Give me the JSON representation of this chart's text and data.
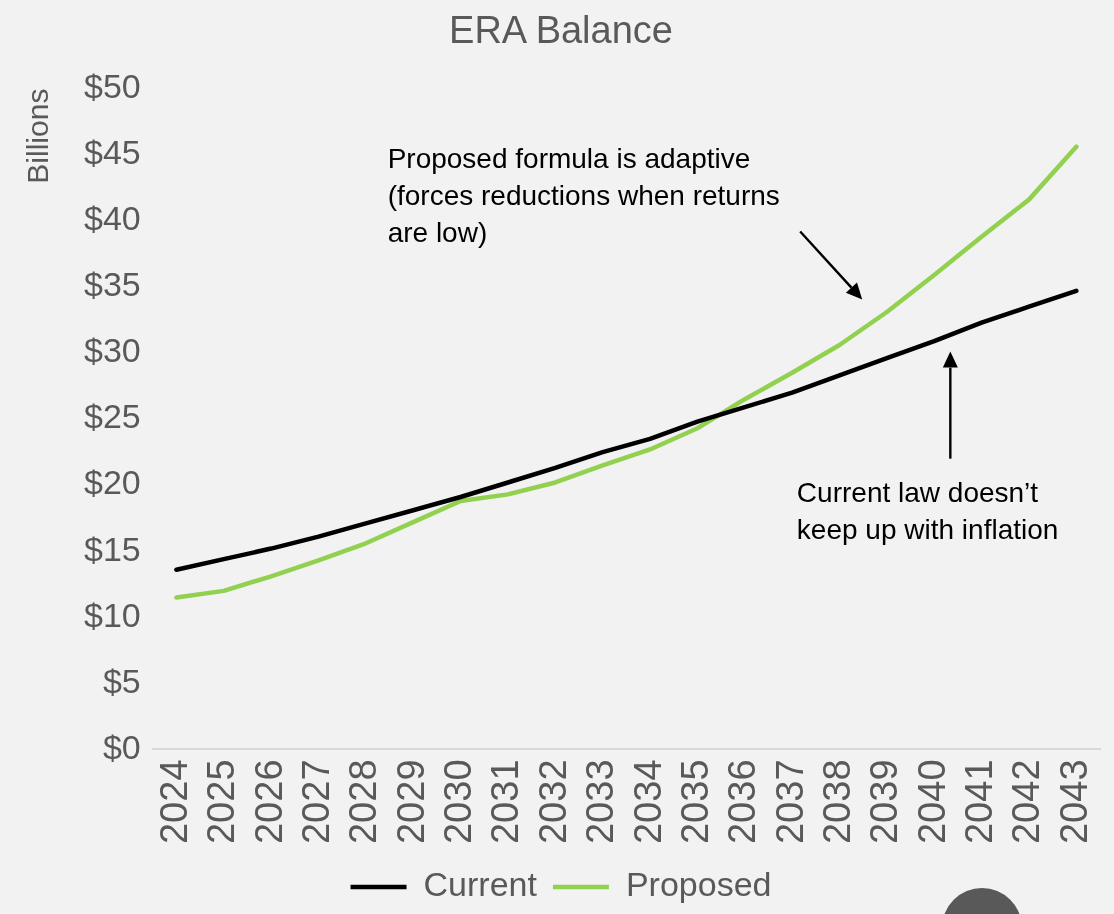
{
  "chart_data": {
    "type": "line",
    "title": "ERA Balance",
    "ylabel": "Billions",
    "categories": [
      "2024",
      "2025",
      "2026",
      "2027",
      "2028",
      "2029",
      "2030",
      "2031",
      "2032",
      "2033",
      "2034",
      "2035",
      "2036",
      "2037",
      "2038",
      "2039",
      "2040",
      "2041",
      "2042",
      "2043"
    ],
    "series": [
      {
        "name": "Current",
        "color": "#000000",
        "values": [
          13.6,
          14.4,
          15.2,
          16.1,
          17.1,
          18.1,
          19.1,
          20.2,
          21.3,
          22.5,
          23.5,
          24.8,
          25.9,
          27.0,
          28.3,
          29.6,
          30.9,
          32.3,
          33.5,
          34.7
        ]
      },
      {
        "name": "Proposed",
        "color": "#92d050",
        "values": [
          11.5,
          12.0,
          13.1,
          14.3,
          15.6,
          17.2,
          18.8,
          19.3,
          20.2,
          21.5,
          22.7,
          24.3,
          26.5,
          28.5,
          30.6,
          33.1,
          35.9,
          38.8,
          41.6,
          45.6
        ]
      }
    ],
    "ylim": [
      0,
      50
    ],
    "yticks": [
      {
        "value": 0,
        "label": "$0"
      },
      {
        "value": 5,
        "label": "$5"
      },
      {
        "value": 10,
        "label": "$10"
      },
      {
        "value": 15,
        "label": "$15"
      },
      {
        "value": 20,
        "label": "$20"
      },
      {
        "value": 25,
        "label": "$25"
      },
      {
        "value": 30,
        "label": "$30"
      },
      {
        "value": 35,
        "label": "$35"
      },
      {
        "value": 40,
        "label": "$40"
      },
      {
        "value": 45,
        "label": "$45"
      },
      {
        "value": 50,
        "label": "$50"
      }
    ],
    "grid": false,
    "legend": "bottom",
    "marker": "none",
    "line_style": "solid",
    "annotations": [
      "Proposed formula is adaptive (forces reductions when returns are low)",
      "Current law doesn’t keep up with inflation"
    ]
  }
}
